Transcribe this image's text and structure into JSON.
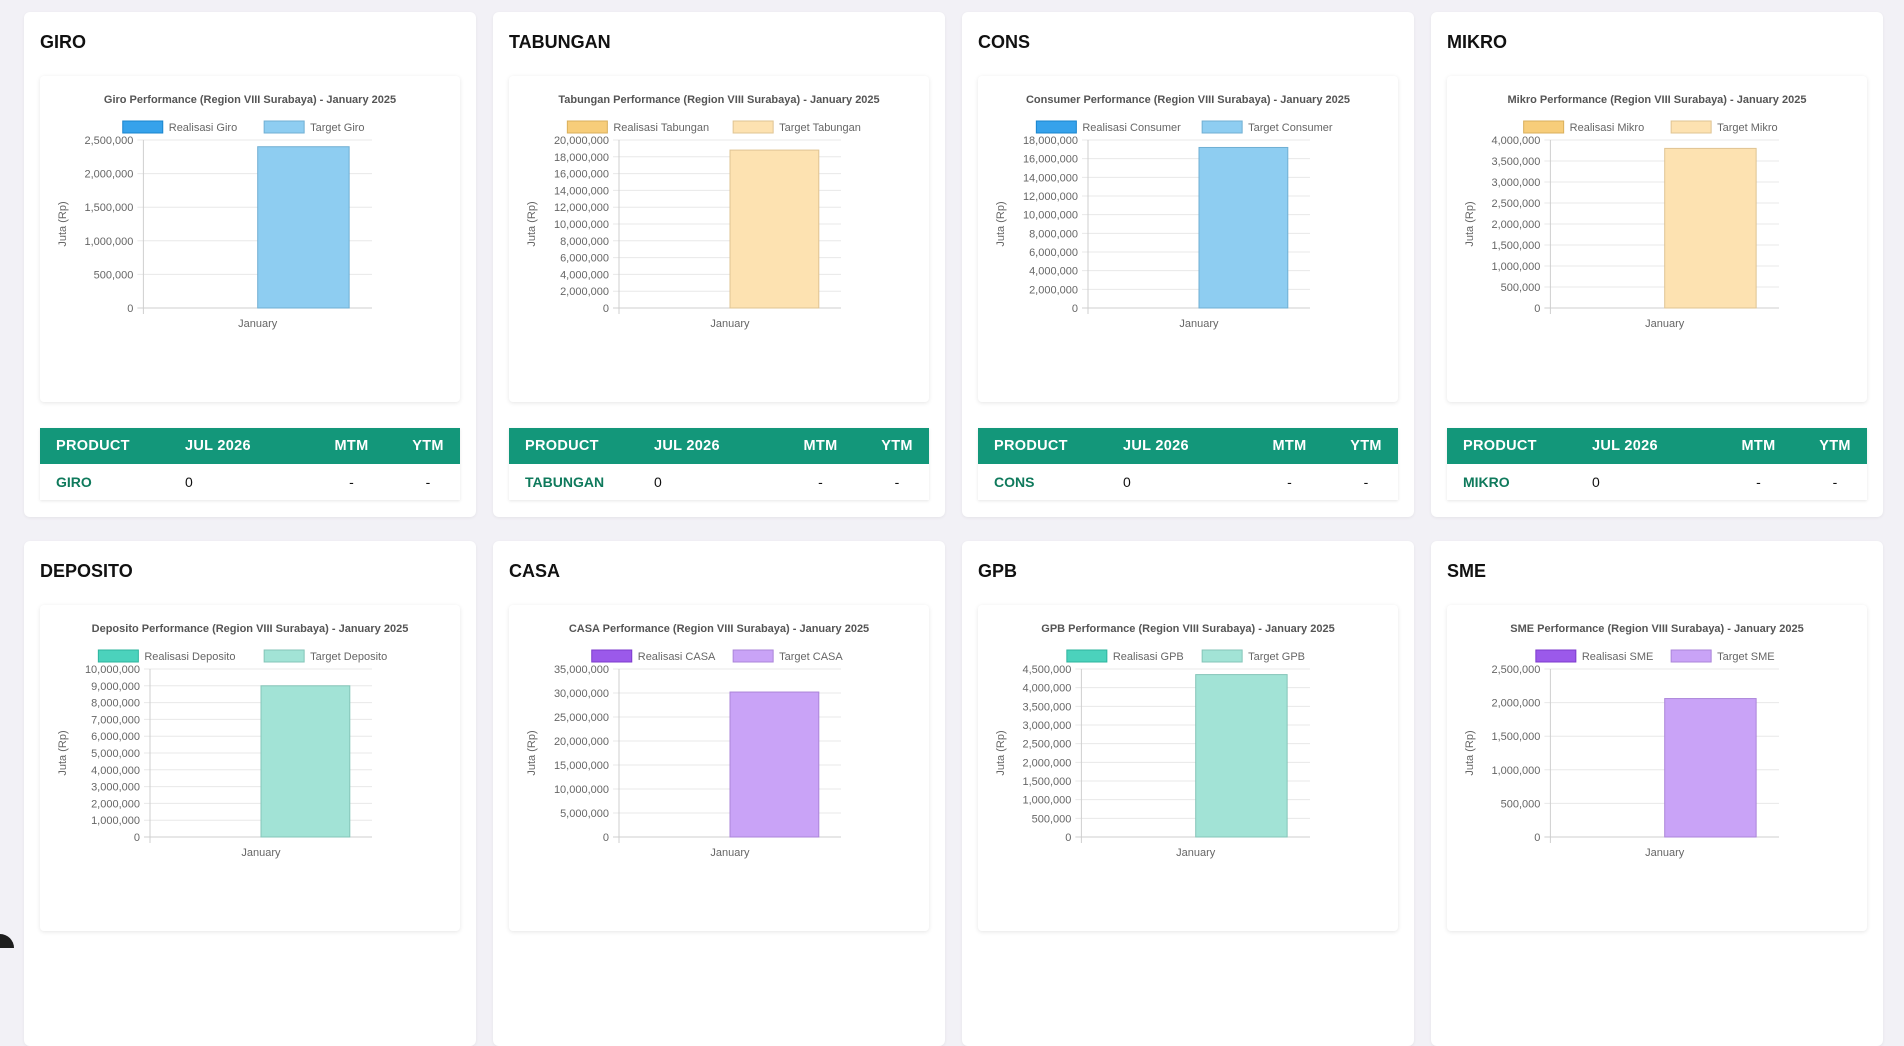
{
  "ylabel": "Juta (Rp)",
  "table_headers": [
    "PRODUCT",
    "JUL 2026",
    "MTM",
    "YTM"
  ],
  "cards": [
    {
      "title": "GIRO",
      "table_row": {
        "product": "GIRO",
        "jul": "0",
        "mtm": "-",
        "ytm": "-"
      },
      "chart_data": {
        "type": "bar",
        "title": "Giro Performance (Region VIII Surabaya) - January 2025",
        "categories": [
          "January"
        ],
        "series": [
          {
            "name": "Realisasi Giro",
            "values": [
              0
            ],
            "color": "#36a2eb"
          },
          {
            "name": "Target Giro",
            "values": [
              2400000
            ],
            "color": "#8ecdf1"
          }
        ],
        "ylabel": "Juta (Rp)",
        "ylim": [
          0,
          2500000
        ],
        "yticks": [
          "0",
          "500,000",
          "1,000,000",
          "1,500,000",
          "2,000,000",
          "2,500,000"
        ],
        "legend": "top"
      }
    },
    {
      "title": "TABUNGAN",
      "table_row": {
        "product": "TABUNGAN",
        "jul": "0",
        "mtm": "-",
        "ytm": "-"
      },
      "chart_data": {
        "type": "bar",
        "title": "Tabungan Performance (Region VIII Surabaya) - January 2025",
        "categories": [
          "January"
        ],
        "series": [
          {
            "name": "Realisasi Tabungan",
            "values": [
              0
            ],
            "color": "#f7cd7a"
          },
          {
            "name": "Target Tabungan",
            "values": [
              18800000
            ],
            "color": "#fde2b1"
          }
        ],
        "ylabel": "Juta (Rp)",
        "ylim": [
          0,
          20000000
        ],
        "yticks": [
          "0",
          "2,000,000",
          "4,000,000",
          "6,000,000",
          "8,000,000",
          "10,000,000",
          "12,000,000",
          "14,000,000",
          "16,000,000",
          "18,000,000",
          "20,000,000"
        ],
        "legend": "top"
      }
    },
    {
      "title": "CONS",
      "table_row": {
        "product": "CONS",
        "jul": "0",
        "mtm": "-",
        "ytm": "-"
      },
      "chart_data": {
        "type": "bar",
        "title": "Consumer Performance (Region VIII Surabaya) - January 2025",
        "categories": [
          "January"
        ],
        "series": [
          {
            "name": "Realisasi Consumer",
            "values": [
              0
            ],
            "color": "#36a2eb"
          },
          {
            "name": "Target Consumer",
            "values": [
              17200000
            ],
            "color": "#8ecdf1"
          }
        ],
        "ylabel": "Juta (Rp)",
        "ylim": [
          0,
          18000000
        ],
        "yticks": [
          "0",
          "2,000,000",
          "4,000,000",
          "6,000,000",
          "8,000,000",
          "10,000,000",
          "12,000,000",
          "14,000,000",
          "16,000,000",
          "18,000,000"
        ],
        "legend": "top"
      }
    },
    {
      "title": "MIKRO",
      "table_row": {
        "product": "MIKRO",
        "jul": "0",
        "mtm": "-",
        "ytm": "-"
      },
      "chart_data": {
        "type": "bar",
        "title": "Mikro Performance (Region VIII Surabaya) - January 2025",
        "categories": [
          "January"
        ],
        "series": [
          {
            "name": "Realisasi Mikro",
            "values": [
              0
            ],
            "color": "#f7cd7a"
          },
          {
            "name": "Target Mikro",
            "values": [
              3800000
            ],
            "color": "#fde2b1"
          }
        ],
        "ylabel": "Juta (Rp)",
        "ylim": [
          0,
          4000000
        ],
        "yticks": [
          "0",
          "500,000",
          "1,000,000",
          "1,500,000",
          "2,000,000",
          "2,500,000",
          "3,000,000",
          "3,500,000",
          "4,000,000"
        ],
        "legend": "top"
      }
    },
    {
      "title": "DEPOSITO",
      "chart_data": {
        "type": "bar",
        "title": "Deposito Performance (Region VIII Surabaya) - January 2025",
        "categories": [
          "January"
        ],
        "series": [
          {
            "name": "Realisasi Deposito",
            "values": [
              0
            ],
            "color": "#4bd2bc"
          },
          {
            "name": "Target Deposito",
            "values": [
              9000000
            ],
            "color": "#a2e3d6"
          }
        ],
        "ylabel": "Juta (Rp)",
        "ylim": [
          0,
          10000000
        ],
        "yticks": [
          "0",
          "1,000,000",
          "2,000,000",
          "3,000,000",
          "4,000,000",
          "5,000,000",
          "6,000,000",
          "7,000,000",
          "8,000,000",
          "9,000,000",
          "10,000,000"
        ],
        "legend": "top"
      }
    },
    {
      "title": "CASA",
      "chart_data": {
        "type": "bar",
        "title": "CASA Performance (Region VIII Surabaya) - January 2025",
        "categories": [
          "January"
        ],
        "series": [
          {
            "name": "Realisasi CASA",
            "values": [
              0
            ],
            "color": "#9b59ea"
          },
          {
            "name": "Target CASA",
            "values": [
              30200000
            ],
            "color": "#c9a3f7"
          }
        ],
        "ylabel": "Juta (Rp)",
        "ylim": [
          0,
          35000000
        ],
        "yticks": [
          "0",
          "5,000,000",
          "10,000,000",
          "15,000,000",
          "20,000,000",
          "25,000,000",
          "30,000,000",
          "35,000,000"
        ],
        "legend": "top"
      }
    },
    {
      "title": "GPB",
      "chart_data": {
        "type": "bar",
        "title": "GPB Performance (Region VIII Surabaya) - January 2025",
        "categories": [
          "January"
        ],
        "series": [
          {
            "name": "Realisasi GPB",
            "values": [
              0
            ],
            "color": "#4bd2bc"
          },
          {
            "name": "Target GPB",
            "values": [
              4350000
            ],
            "color": "#a2e3d6"
          }
        ],
        "ylabel": "Juta (Rp)",
        "ylim": [
          0,
          4500000
        ],
        "yticks": [
          "0",
          "500,000",
          "1,000,000",
          "1,500,000",
          "2,000,000",
          "2,500,000",
          "3,000,000",
          "3,500,000",
          "4,000,000",
          "4,500,000"
        ],
        "legend": "top"
      }
    },
    {
      "title": "SME",
      "chart_data": {
        "type": "bar",
        "title": "SME Performance (Region VIII Surabaya) - January 2025",
        "categories": [
          "January"
        ],
        "series": [
          {
            "name": "Realisasi SME",
            "values": [
              0
            ],
            "color": "#9b59ea"
          },
          {
            "name": "Target SME",
            "values": [
              2060000
            ],
            "color": "#c9a3f7"
          }
        ],
        "ylabel": "Juta (Rp)",
        "ylim": [
          0,
          2500000
        ],
        "yticks": [
          "0",
          "500,000",
          "1,000,000",
          "1,500,000",
          "2,000,000",
          "2,500,000"
        ],
        "legend": "top"
      }
    }
  ]
}
